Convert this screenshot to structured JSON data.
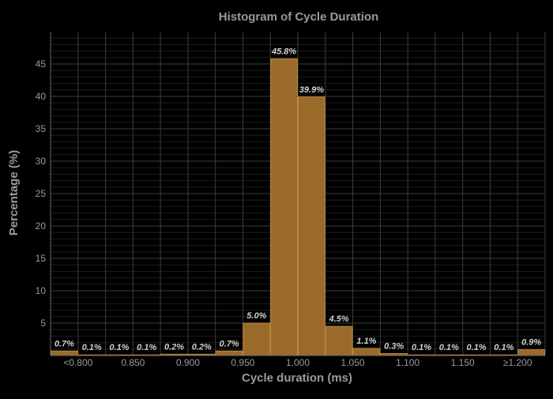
{
  "chart_data": {
    "type": "bar",
    "title": "Histogram of Cycle Duration",
    "xlabel": "Cycle duration (ms)",
    "ylabel": "Percentage (%)",
    "bin_edges": [
      0.775,
      0.8,
      0.825,
      0.85,
      0.875,
      0.9,
      0.925,
      0.95,
      0.975,
      1.0,
      1.025,
      1.05,
      1.075,
      1.1,
      1.125,
      1.15,
      1.175,
      1.2,
      1.225
    ],
    "values": [
      0.7,
      0.1,
      0.1,
      0.1,
      0.2,
      0.2,
      0.7,
      5.0,
      45.8,
      39.9,
      4.5,
      1.1,
      0.3,
      0.1,
      0.1,
      0.1,
      0.1,
      0.9
    ],
    "labels": [
      "0.7%",
      "0.1%",
      "0.1%",
      "0.1%",
      "0.2%",
      "0.2%",
      "0.7%",
      "5.0%",
      "45.8%",
      "39.9%",
      "4.5%",
      "1.1%",
      "0.3%",
      "0.1%",
      "0.1%",
      "0.1%",
      "0.1%",
      "0.9%"
    ],
    "x_ticks": [
      {
        "value": 0.8,
        "label": "<0.800"
      },
      {
        "value": 0.85,
        "label": "0.850"
      },
      {
        "value": 0.9,
        "label": "0.900"
      },
      {
        "value": 0.95,
        "label": "0.950"
      },
      {
        "value": 1.0,
        "label": "1.000"
      },
      {
        "value": 1.05,
        "label": "1.050"
      },
      {
        "value": 1.1,
        "label": "1.100"
      },
      {
        "value": 1.15,
        "label": "1.150"
      },
      {
        "value": 1.2,
        "label": "≥1.200"
      }
    ],
    "y_ticks": [
      5,
      10,
      15,
      20,
      25,
      30,
      35,
      40,
      45
    ],
    "xlim": [
      0.775,
      1.225
    ],
    "ylim": [
      0,
      50
    ],
    "grid": true,
    "legend": "none",
    "colors": {
      "bar": "#9a6a2a",
      "bar_edge": "#c08a3e",
      "background": "#000000",
      "grid_major": "#3c3c3c",
      "grid_minor": "#1c1c1c",
      "text": "#9a9a9a",
      "data_label": "#cfcfcf"
    }
  }
}
